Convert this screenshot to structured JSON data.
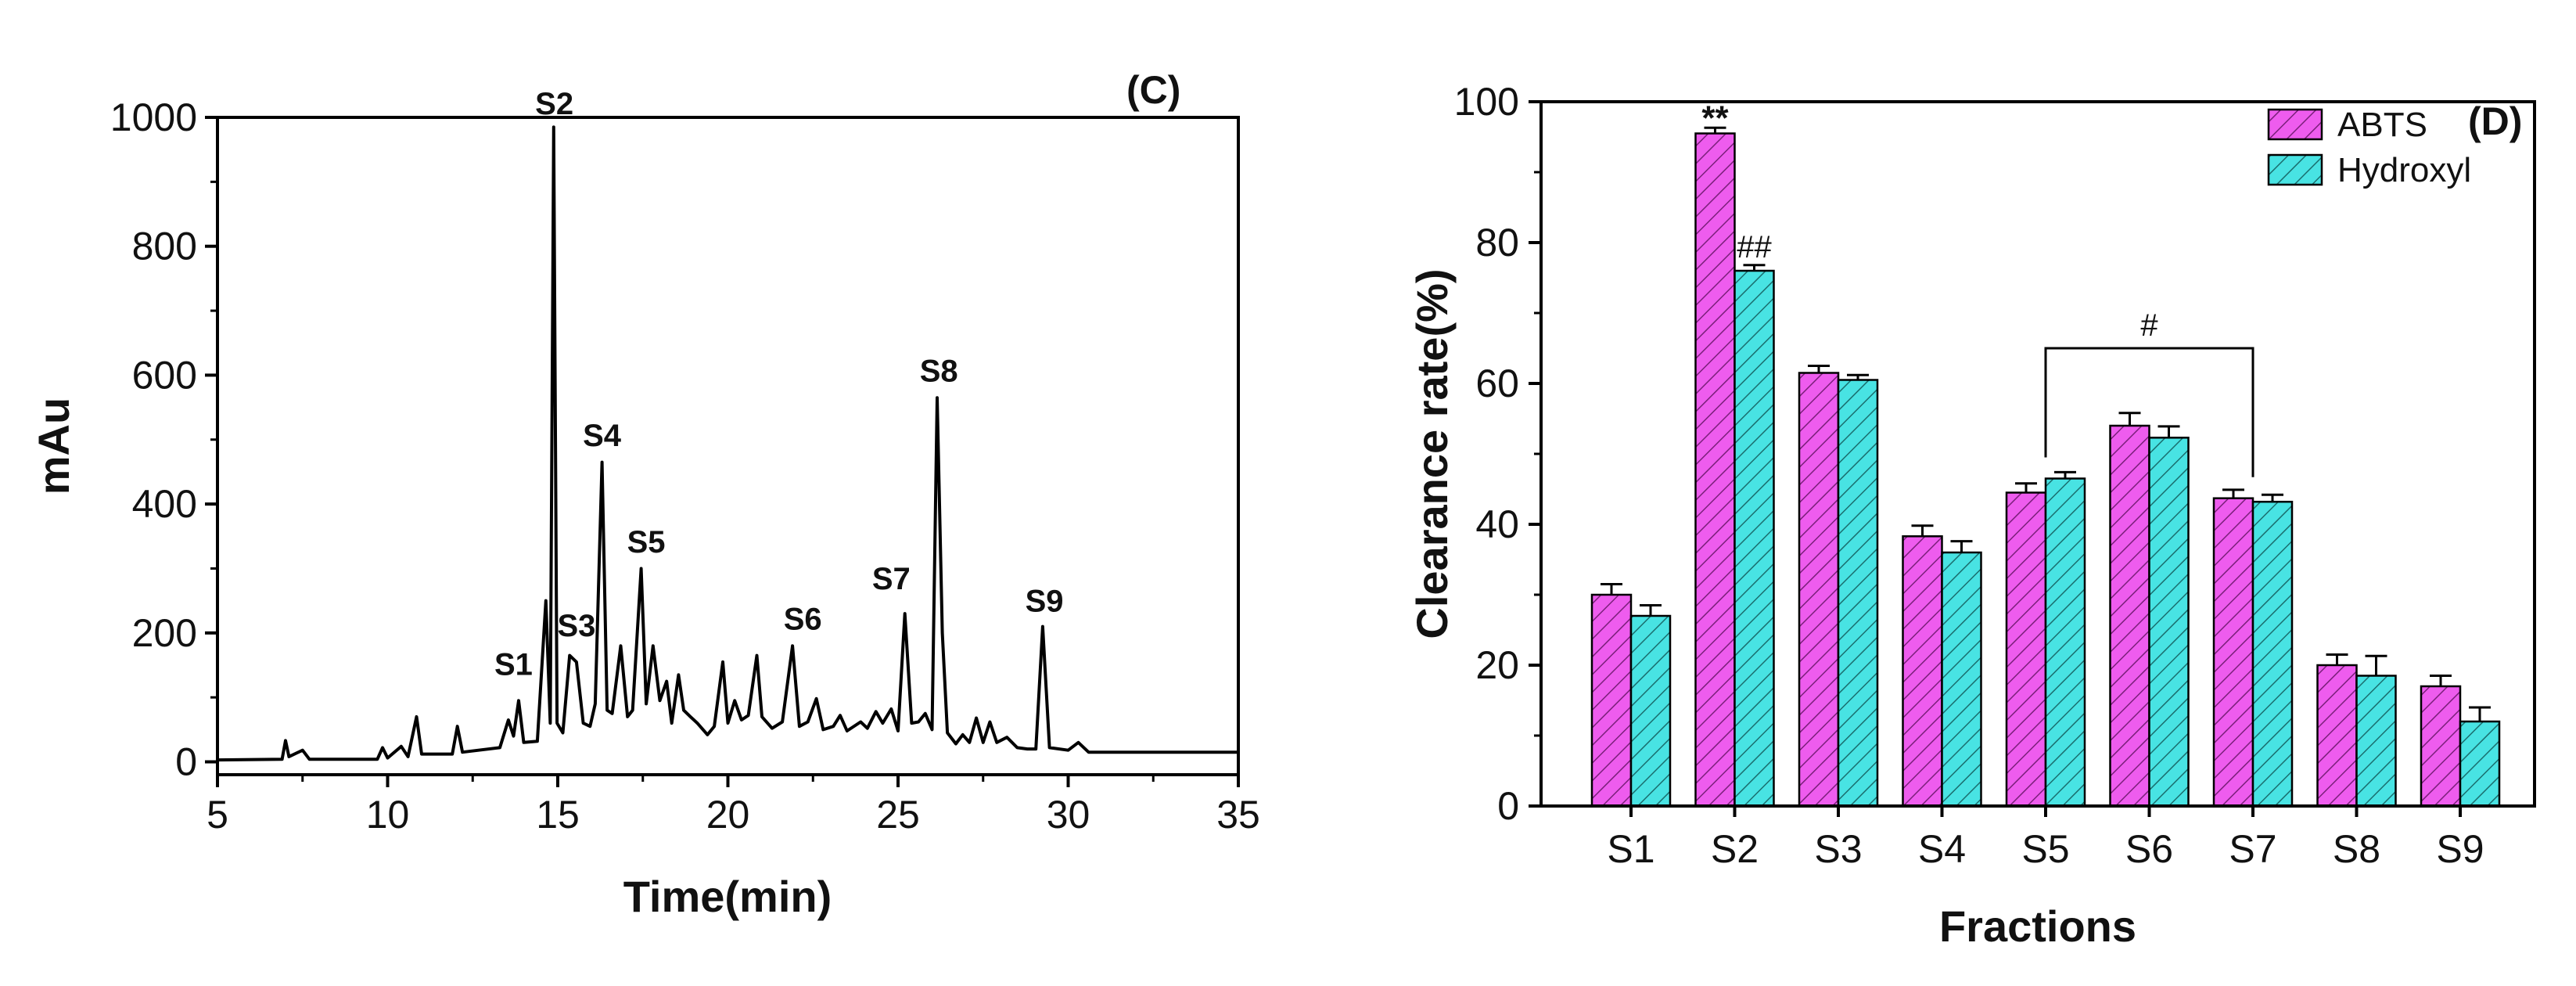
{
  "chart_data": [
    {
      "type": "line",
      "panel_label": "(C)",
      "title": "",
      "xlabel": "Time(min)",
      "ylabel": "mAu",
      "xlim": [
        5,
        35
      ],
      "ylim": [
        -20,
        1000
      ],
      "x_ticks": [
        "5",
        "10",
        "15",
        "20",
        "25",
        "30",
        "35"
      ],
      "y_ticks": [
        "0",
        "200",
        "400",
        "600",
        "800",
        "1000"
      ],
      "color": "#000000",
      "series": [
        {
          "name": "chromatogram",
          "points": [
            [
              5,
              3
            ],
            [
              6.9,
              4
            ],
            [
              7.0,
              33
            ],
            [
              7.1,
              8
            ],
            [
              7.5,
              18
            ],
            [
              7.7,
              4
            ],
            [
              9.7,
              4
            ],
            [
              9.85,
              22
            ],
            [
              10.0,
              6
            ],
            [
              10.4,
              24
            ],
            [
              10.6,
              8
            ],
            [
              10.85,
              70
            ],
            [
              11.0,
              12
            ],
            [
              11.9,
              12
            ],
            [
              12.05,
              55
            ],
            [
              12.2,
              15
            ],
            [
              13.3,
              22
            ],
            [
              13.55,
              65
            ],
            [
              13.7,
              40
            ],
            [
              13.85,
              95
            ],
            [
              14.0,
              30
            ],
            [
              14.4,
              32
            ],
            [
              14.65,
              250
            ],
            [
              14.78,
              60
            ],
            [
              14.88,
              985
            ],
            [
              14.98,
              60
            ],
            [
              15.15,
              45
            ],
            [
              15.35,
              165
            ],
            [
              15.55,
              155
            ],
            [
              15.75,
              60
            ],
            [
              15.95,
              55
            ],
            [
              16.1,
              90
            ],
            [
              16.3,
              465
            ],
            [
              16.45,
              80
            ],
            [
              16.6,
              75
            ],
            [
              16.85,
              180
            ],
            [
              17.05,
              70
            ],
            [
              17.2,
              80
            ],
            [
              17.45,
              300
            ],
            [
              17.6,
              90
            ],
            [
              17.8,
              180
            ],
            [
              18.0,
              95
            ],
            [
              18.2,
              125
            ],
            [
              18.35,
              60
            ],
            [
              18.55,
              135
            ],
            [
              18.7,
              80
            ],
            [
              18.9,
              70
            ],
            [
              19.1,
              60
            ],
            [
              19.4,
              42
            ],
            [
              19.6,
              55
            ],
            [
              19.85,
              155
            ],
            [
              20.0,
              60
            ],
            [
              20.2,
              95
            ],
            [
              20.4,
              65
            ],
            [
              20.6,
              72
            ],
            [
              20.85,
              165
            ],
            [
              21.0,
              70
            ],
            [
              21.3,
              52
            ],
            [
              21.6,
              62
            ],
            [
              21.9,
              180
            ],
            [
              22.1,
              55
            ],
            [
              22.35,
              62
            ],
            [
              22.6,
              98
            ],
            [
              22.8,
              50
            ],
            [
              23.1,
              55
            ],
            [
              23.3,
              72
            ],
            [
              23.5,
              48
            ],
            [
              23.9,
              62
            ],
            [
              24.1,
              52
            ],
            [
              24.35,
              78
            ],
            [
              24.55,
              60
            ],
            [
              24.8,
              82
            ],
            [
              25.0,
              48
            ],
            [
              25.2,
              230
            ],
            [
              25.4,
              60
            ],
            [
              25.6,
              62
            ],
            [
              25.8,
              75
            ],
            [
              26.0,
              50
            ],
            [
              26.15,
              565
            ],
            [
              26.3,
              200
            ],
            [
              26.45,
              45
            ],
            [
              26.7,
              28
            ],
            [
              26.9,
              42
            ],
            [
              27.1,
              30
            ],
            [
              27.3,
              68
            ],
            [
              27.5,
              30
            ],
            [
              27.7,
              62
            ],
            [
              27.9,
              30
            ],
            [
              28.2,
              38
            ],
            [
              28.5,
              22
            ],
            [
              28.8,
              20
            ],
            [
              29.05,
              20
            ],
            [
              29.25,
              210
            ],
            [
              29.45,
              22
            ],
            [
              30.0,
              18
            ],
            [
              30.3,
              30
            ],
            [
              30.6,
              15
            ],
            [
              32,
              15
            ],
            [
              35,
              15
            ]
          ]
        }
      ],
      "annotations": [
        {
          "text": "S1",
          "x": 13.7,
          "y": 135
        },
        {
          "text": "S2",
          "x": 14.9,
          "y": 1005
        },
        {
          "text": "S3",
          "x": 15.55,
          "y": 195
        },
        {
          "text": "S4",
          "x": 16.3,
          "y": 490
        },
        {
          "text": "S5",
          "x": 17.6,
          "y": 325
        },
        {
          "text": "S6",
          "x": 22.2,
          "y": 205
        },
        {
          "text": "S7",
          "x": 24.8,
          "y": 268
        },
        {
          "text": "S8",
          "x": 26.2,
          "y": 590
        },
        {
          "text": "S9",
          "x": 29.3,
          "y": 233
        }
      ]
    },
    {
      "type": "bar",
      "panel_label": "(D)",
      "title": "",
      "xlabel": "Fractions",
      "ylabel": "Clearance rate(%)",
      "ylim": [
        0,
        100
      ],
      "y_ticks": [
        "0",
        "20",
        "40",
        "60",
        "80",
        "100"
      ],
      "categories": [
        "S1",
        "S2",
        "S3",
        "S4",
        "S5",
        "S6",
        "S7",
        "S8",
        "S9"
      ],
      "series": [
        {
          "name": "ABTS",
          "color": "#ee5cee",
          "values": [
            30,
            95.5,
            61.5,
            38.3,
            44.5,
            54,
            43.7,
            20,
            17
          ],
          "errors": [
            1.5,
            0.8,
            1.0,
            1.5,
            1.3,
            1.8,
            1.2,
            1.5,
            1.5
          ]
        },
        {
          "name": "Hydroxyl",
          "color": "#48e3e3",
          "values": [
            27,
            76,
            60.5,
            36,
            46.5,
            52.3,
            43.2,
            18.5,
            12
          ],
          "errors": [
            1.5,
            0.8,
            0.7,
            1.6,
            0.9,
            1.6,
            1.0,
            2.8,
            2.0
          ]
        }
      ],
      "significance": [
        {
          "text": "**",
          "category": "S2",
          "series": "ABTS"
        },
        {
          "text": "##",
          "category": "S2",
          "series": "Hydroxyl"
        },
        {
          "text": "#",
          "from": "S5",
          "to": "S7",
          "bracket_y": 65
        }
      ],
      "legend_position": "top-right"
    }
  ]
}
